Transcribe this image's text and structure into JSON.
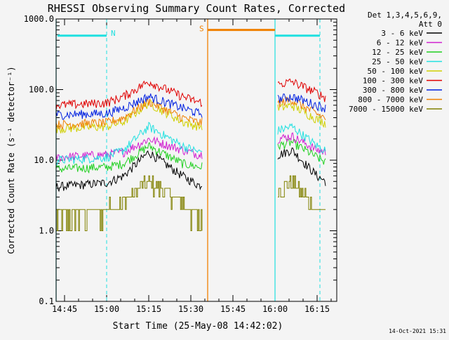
{
  "chart_data": {
    "type": "line",
    "title": "RHESSI Observing Summary Count Rates, Corrected",
    "xlabel": "Start Time (25-May-08 14:42:02)",
    "ylabel": "Corrected Count Rate (s⁻¹ detector⁻¹)",
    "y_scale": "log",
    "ylim": [
      0.1,
      1000
    ],
    "xlim": [
      "14:42",
      "16:22"
    ],
    "x_ticks": [
      "14:45",
      "15:00",
      "15:15",
      "15:30",
      "15:45",
      "16:00",
      "16:15"
    ],
    "y_ticks": [
      "0.1",
      "1.0",
      "10.0",
      "100.0",
      "1000.0"
    ],
    "legend": {
      "header_line1": "Det 1,3,4,5,6,9,",
      "header_line2": "Att 0",
      "placement": "top-right"
    },
    "series": [
      {
        "name": "3 - 6 keV",
        "color": "#000000",
        "values": [
          [
            14.7,
            4.2
          ],
          [
            15.0,
            4.8
          ],
          [
            15.1,
            6
          ],
          [
            15.25,
            13
          ],
          [
            15.45,
            6
          ],
          [
            15.55,
            4.4
          ],
          [
            16.1,
            14
          ],
          [
            16.25,
            6
          ],
          [
            16.35,
            4.2
          ]
        ]
      },
      {
        "name": "6 - 12 keV",
        "color": "#d020d0",
        "values": [
          [
            14.7,
            11
          ],
          [
            15.0,
            12
          ],
          [
            15.1,
            13
          ],
          [
            15.25,
            20
          ],
          [
            15.45,
            14
          ],
          [
            15.55,
            12
          ],
          [
            16.1,
            22
          ],
          [
            16.25,
            14
          ],
          [
            16.35,
            12
          ]
        ]
      },
      {
        "name": "12 - 25 keV",
        "color": "#20d020",
        "values": [
          [
            14.7,
            7.5
          ],
          [
            15.0,
            8
          ],
          [
            15.1,
            9
          ],
          [
            15.25,
            16
          ],
          [
            15.45,
            9
          ],
          [
            15.55,
            8
          ],
          [
            16.1,
            18
          ],
          [
            16.25,
            11
          ],
          [
            16.35,
            8
          ]
        ]
      },
      {
        "name": "25 - 50 keV",
        "color": "#20e0e0",
        "values": [
          [
            14.7,
            10
          ],
          [
            15.0,
            11
          ],
          [
            15.1,
            14
          ],
          [
            15.25,
            30
          ],
          [
            15.45,
            16
          ],
          [
            15.55,
            13
          ],
          [
            16.1,
            30
          ],
          [
            16.25,
            16
          ],
          [
            16.35,
            12
          ]
        ]
      },
      {
        "name": "50 - 100 keV",
        "color": "#d0d000",
        "values": [
          [
            14.7,
            28
          ],
          [
            15.0,
            30
          ],
          [
            15.1,
            35
          ],
          [
            15.25,
            65
          ],
          [
            15.45,
            35
          ],
          [
            15.55,
            30
          ],
          [
            16.1,
            60
          ],
          [
            16.25,
            38
          ],
          [
            16.35,
            30
          ]
        ]
      },
      {
        "name": "100 - 300 keV",
        "color": "#e00000",
        "values": [
          [
            14.7,
            60
          ],
          [
            15.0,
            65
          ],
          [
            15.1,
            80
          ],
          [
            15.25,
            130
          ],
          [
            15.45,
            80
          ],
          [
            15.55,
            66
          ],
          [
            16.1,
            130
          ],
          [
            16.25,
            90
          ],
          [
            16.35,
            65
          ]
        ]
      },
      {
        "name": "300 - 800 keV",
        "color": "#0020e0",
        "values": [
          [
            14.7,
            44
          ],
          [
            15.0,
            46
          ],
          [
            15.1,
            55
          ],
          [
            15.25,
            80
          ],
          [
            15.45,
            55
          ],
          [
            15.55,
            46
          ],
          [
            16.1,
            80
          ],
          [
            16.25,
            60
          ],
          [
            16.35,
            50
          ]
        ]
      },
      {
        "name": "800 - 7000 keV",
        "color": "#f08000",
        "values": [
          [
            14.7,
            32
          ],
          [
            15.0,
            34
          ],
          [
            15.1,
            40
          ],
          [
            15.25,
            68
          ],
          [
            15.45,
            40
          ],
          [
            15.55,
            34
          ],
          [
            16.1,
            72
          ],
          [
            16.25,
            45
          ],
          [
            16.35,
            35
          ]
        ]
      },
      {
        "name": "7000 - 15000 keV",
        "color": "#808000",
        "values": [
          [
            14.7,
            1.5
          ],
          [
            15.0,
            2
          ],
          [
            15.1,
            2.5
          ],
          [
            15.25,
            5
          ],
          [
            15.45,
            2.5
          ],
          [
            15.55,
            1.5
          ],
          [
            16.1,
            5
          ],
          [
            16.25,
            2
          ],
          [
            16.35,
            1.5
          ]
        ]
      }
    ],
    "flags": [
      {
        "label": "N",
        "color": "#20e0e0",
        "level": 580
      },
      {
        "label": "S",
        "color": "#f08000",
        "level": 700
      }
    ]
  },
  "footer": {
    "date": "14-Oct-2021 15:31"
  }
}
